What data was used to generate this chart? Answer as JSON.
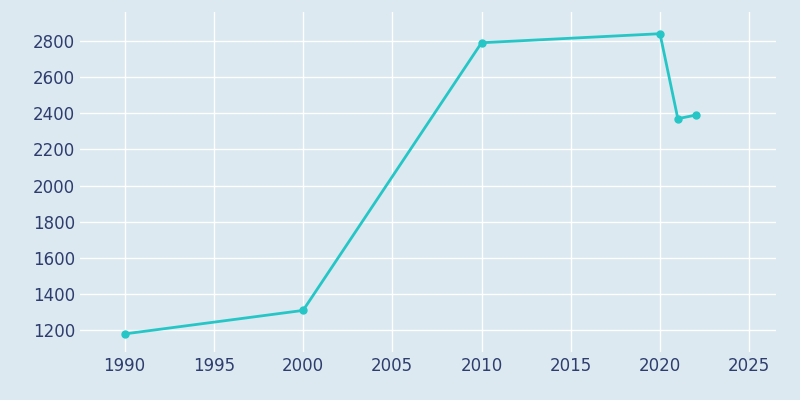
{
  "years": [
    1990,
    2000,
    2010,
    2020,
    2021,
    2022
  ],
  "population": [
    1180,
    1310,
    2790,
    2840,
    2370,
    2390
  ],
  "line_color": "#26C6C6",
  "marker_color": "#26C6C6",
  "bg_color": "#dce9f1",
  "plot_bg_color": "#dce9f1",
  "tick_label_color": "#2e3d6e",
  "xlim": [
    1987.5,
    2026.5
  ],
  "ylim": [
    1080,
    2960
  ],
  "xticks": [
    1990,
    1995,
    2000,
    2005,
    2010,
    2015,
    2020,
    2025
  ],
  "yticks": [
    1200,
    1400,
    1600,
    1800,
    2000,
    2200,
    2400,
    2600,
    2800
  ],
  "linewidth": 2.0,
  "markersize": 5,
  "tick_fontsize": 12,
  "grid_color": "#ffffff",
  "grid_linewidth": 1.0
}
